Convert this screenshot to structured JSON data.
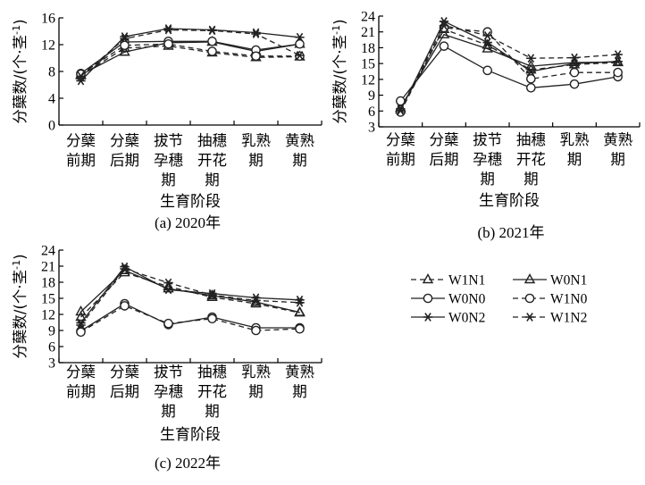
{
  "chart_data": [
    {
      "type": "line",
      "caption": "(a) 2020年",
      "ylabel": "分蘖数/(个·茎-1)",
      "xlabel": "生育阶段",
      "ylim": [
        0,
        16
      ],
      "yticks": [
        "0",
        "4",
        "8",
        "12",
        "16"
      ],
      "categories": [
        [
          "分蘖",
          "前期"
        ],
        [
          "分蘖",
          "后期"
        ],
        [
          "拔节",
          "孕穗",
          "期"
        ],
        [
          "抽穗",
          "开花",
          "期"
        ],
        [
          "乳熟",
          "期"
        ],
        [
          "黄熟",
          "期"
        ]
      ],
      "series": [
        {
          "name": "W1N1",
          "values": [
            7.4,
            11.5,
            11.8,
            10.8,
            10.1,
            10.2
          ]
        },
        {
          "name": "W0N1",
          "values": [
            7.5,
            10.9,
            12.3,
            12.4,
            11.0,
            12.1
          ]
        },
        {
          "name": "W0N0",
          "values": [
            7.7,
            12.4,
            12.5,
            12.5,
            11.2,
            12.1
          ]
        },
        {
          "name": "W1N0",
          "values": [
            7.6,
            11.9,
            12.1,
            11.0,
            10.3,
            10.3
          ]
        },
        {
          "name": "W0N2",
          "values": [
            6.6,
            13.2,
            14.4,
            14.2,
            13.8,
            13.1
          ]
        },
        {
          "name": "W1N2",
          "values": [
            7.3,
            12.9,
            14.2,
            14.1,
            13.6,
            10.4
          ]
        }
      ]
    },
    {
      "type": "line",
      "caption": "(b) 2021年",
      "ylabel": "分蘖数/(个·茎-1)",
      "xlabel": "生育阶段",
      "ylim": [
        3,
        24
      ],
      "yticks": [
        "3",
        "6",
        "9",
        "12",
        "15",
        "18",
        "21",
        "24"
      ],
      "categories": [
        [
          "分蘖",
          "前期"
        ],
        [
          "分蘖",
          "后期"
        ],
        [
          "拔节",
          "孕穗",
          "期"
        ],
        [
          "抽穗",
          "开花",
          "期"
        ],
        [
          "乳熟",
          "期"
        ],
        [
          "黄熟",
          "期"
        ]
      ],
      "series": [
        {
          "name": "W1N1",
          "values": [
            6.3,
            21.5,
            18.5,
            13.8,
            14.8,
            15.2
          ]
        },
        {
          "name": "W0N1",
          "values": [
            6.6,
            20.5,
            17.8,
            14.5,
            15.2,
            15.3
          ]
        },
        {
          "name": "W0N0",
          "values": [
            7.9,
            18.3,
            13.7,
            10.4,
            11.1,
            12.5
          ]
        },
        {
          "name": "W1N0",
          "values": [
            5.8,
            21.8,
            21.0,
            12.1,
            13.3,
            13.3
          ]
        },
        {
          "name": "W0N2",
          "values": [
            6.1,
            23.0,
            19.0,
            13.5,
            15.0,
            15.4
          ]
        },
        {
          "name": "W1N2",
          "values": [
            6.4,
            22.2,
            20.3,
            16.0,
            16.1,
            16.7
          ]
        }
      ]
    },
    {
      "type": "line",
      "caption": "(c) 2022年",
      "ylabel": "分蘖数/(个·茎-1)",
      "xlabel": "生育阶段",
      "ylim": [
        3,
        24
      ],
      "yticks": [
        "3",
        "6",
        "9",
        "12",
        "15",
        "18",
        "21",
        "24"
      ],
      "categories": [
        [
          "分蘖",
          "前期"
        ],
        [
          "分蘖",
          "后期"
        ],
        [
          "拔节",
          "孕穗",
          "期"
        ],
        [
          "抽穗",
          "开花",
          "期"
        ],
        [
          "乳熟",
          "期"
        ],
        [
          "黄熟",
          "期"
        ]
      ],
      "series": [
        {
          "name": "W1N1",
          "values": [
            11.5,
            19.8,
            17.2,
            15.2,
            14.0,
            12.3
          ]
        },
        {
          "name": "W0N1",
          "values": [
            12.5,
            20.2,
            16.8,
            15.5,
            14.3,
            12.4
          ]
        },
        {
          "name": "W0N0",
          "values": [
            8.9,
            14.0,
            10.1,
            11.5,
            9.5,
            9.5
          ]
        },
        {
          "name": "W1N0",
          "values": [
            8.7,
            13.6,
            10.3,
            11.2,
            9.0,
            9.3
          ]
        },
        {
          "name": "W0N2",
          "values": [
            10.4,
            20.9,
            16.6,
            15.9,
            15.1,
            14.7
          ]
        },
        {
          "name": "W1N2",
          "values": [
            10.0,
            20.5,
            17.9,
            15.6,
            14.6,
            14.2
          ]
        }
      ]
    }
  ],
  "legend": [
    {
      "name": "W1N1",
      "dashed": true,
      "marker": "triangle"
    },
    {
      "name": "W0N1",
      "dashed": false,
      "marker": "triangle"
    },
    {
      "name": "W0N0",
      "dashed": false,
      "marker": "circle"
    },
    {
      "name": "W1N0",
      "dashed": true,
      "marker": "circle"
    },
    {
      "name": "W0N2",
      "dashed": false,
      "marker": "star"
    },
    {
      "name": "W1N2",
      "dashed": true,
      "marker": "star"
    }
  ],
  "series_style": {
    "W1N1": {
      "dashed": true,
      "marker": "triangle"
    },
    "W0N1": {
      "dashed": false,
      "marker": "triangle"
    },
    "W0N0": {
      "dashed": false,
      "marker": "circle"
    },
    "W1N0": {
      "dashed": true,
      "marker": "circle"
    },
    "W0N2": {
      "dashed": false,
      "marker": "star"
    },
    "W1N2": {
      "dashed": true,
      "marker": "star"
    }
  },
  "line_color": "#222222"
}
